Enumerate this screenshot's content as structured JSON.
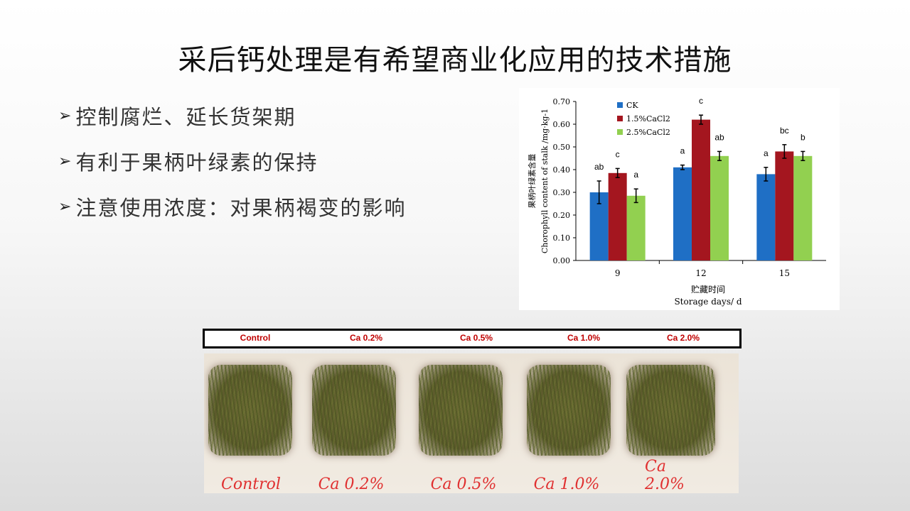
{
  "slide": {
    "title": "采后钙处理是有希望商业化应用的技术措施",
    "bullet_marker": "➢",
    "bullets": [
      "控制腐烂、延长货架期",
      "有利于果柄叶绿素的保持",
      "注意使用浓度：对果柄褐变的影响"
    ]
  },
  "chart_data": {
    "type": "bar",
    "categories": [
      "9",
      "12",
      "15"
    ],
    "series": [
      {
        "name": "CK",
        "color": "#1F6FC5",
        "values": [
          0.3,
          0.41,
          0.38
        ],
        "errors": [
          0.05,
          0.01,
          0.03
        ],
        "letters": [
          "ab",
          "a",
          "a"
        ]
      },
      {
        "name": "1.5%CaCl2",
        "color": "#A4161F",
        "values": [
          0.385,
          0.62,
          0.48
        ],
        "errors": [
          0.02,
          0.02,
          0.03
        ],
        "letters": [
          "c",
          "c",
          "bc"
        ]
      },
      {
        "name": "2.5%CaCl2",
        "color": "#92D050",
        "values": [
          0.285,
          0.46,
          0.46
        ],
        "errors": [
          0.03,
          0.02,
          0.02
        ],
        "letters": [
          "a",
          "ab",
          "b"
        ]
      }
    ],
    "ylim": [
      0,
      0.7
    ],
    "yticks": [
      "0.00",
      "0.10",
      "0.20",
      "0.30",
      "0.40",
      "0.50",
      "0.60",
      "0.70"
    ],
    "ylabel_cn": "果柄叶绿素含量",
    "ylabel_en": "Chorophyll content of stalk /mg·kg-1",
    "xlabel_cn": "贮藏时间",
    "xlabel_en": "Storage days/ d",
    "legend_position": "top-left",
    "grid": false
  },
  "photo_panel": {
    "header_labels": [
      "Control",
      "Ca 0.2%",
      "Ca 0.5%",
      "Ca 1.0%",
      "Ca 2.0%"
    ],
    "handwritten_labels": [
      "Control",
      "Ca 0.2%",
      "Ca 0.5%",
      "Ca 1.0%",
      "Ca 2.0%"
    ]
  }
}
